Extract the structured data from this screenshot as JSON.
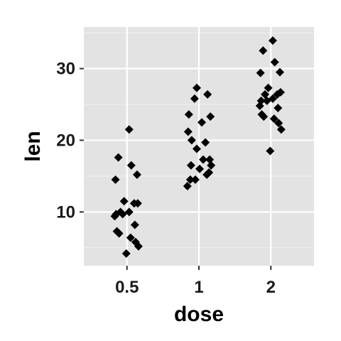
{
  "chart_data": {
    "type": "scatter",
    "title": "",
    "xlabel": "dose",
    "ylabel": "len",
    "categories": [
      "0.5",
      "1",
      "2"
    ],
    "ylim": [
      2.5,
      35.8
    ],
    "y_ticks": [
      10,
      20,
      30
    ],
    "grid": true,
    "legend": "none",
    "colors": {
      "panel": "#e3e3e3",
      "grid_major": "#ffffff",
      "grid_minor": "#f1f1f1",
      "point": "#000000"
    },
    "points": [
      {
        "x": "0.5",
        "y": 21.5
      },
      {
        "x": "0.5",
        "y": 17.6
      },
      {
        "x": "0.5",
        "y": 16.5
      },
      {
        "x": "0.5",
        "y": 15.2
      },
      {
        "x": "0.5",
        "y": 14.5
      },
      {
        "x": "0.5",
        "y": 11.5
      },
      {
        "x": "0.5",
        "y": 11.2
      },
      {
        "x": "0.5",
        "y": 11.2
      },
      {
        "x": "0.5",
        "y": 10.0
      },
      {
        "x": "0.5",
        "y": 10.0
      },
      {
        "x": "0.5",
        "y": 9.7
      },
      {
        "x": "0.5",
        "y": 9.7
      },
      {
        "x": "0.5",
        "y": 9.4
      },
      {
        "x": "0.5",
        "y": 8.2
      },
      {
        "x": "0.5",
        "y": 7.3
      },
      {
        "x": "0.5",
        "y": 7.0
      },
      {
        "x": "0.5",
        "y": 6.4
      },
      {
        "x": "0.5",
        "y": 5.8
      },
      {
        "x": "0.5",
        "y": 5.2
      },
      {
        "x": "0.5",
        "y": 4.2
      },
      {
        "x": "1",
        "y": 27.3
      },
      {
        "x": "1",
        "y": 26.4
      },
      {
        "x": "1",
        "y": 25.8
      },
      {
        "x": "1",
        "y": 23.6
      },
      {
        "x": "1",
        "y": 23.3
      },
      {
        "x": "1",
        "y": 22.5
      },
      {
        "x": "1",
        "y": 21.2
      },
      {
        "x": "1",
        "y": 20.0
      },
      {
        "x": "1",
        "y": 19.7
      },
      {
        "x": "1",
        "y": 18.8
      },
      {
        "x": "1",
        "y": 17.3
      },
      {
        "x": "1",
        "y": 17.3
      },
      {
        "x": "1",
        "y": 16.5
      },
      {
        "x": "1",
        "y": 16.5
      },
      {
        "x": "1",
        "y": 15.5
      },
      {
        "x": "1",
        "y": 15.2
      },
      {
        "x": "1",
        "y": 14.5
      },
      {
        "x": "1",
        "y": 14.5
      },
      {
        "x": "1",
        "y": 13.6
      },
      {
        "x": "1",
        "y": 16.0
      },
      {
        "x": "2",
        "y": 33.9
      },
      {
        "x": "2",
        "y": 32.5
      },
      {
        "x": "2",
        "y": 30.9
      },
      {
        "x": "2",
        "y": 29.5
      },
      {
        "x": "2",
        "y": 29.4
      },
      {
        "x": "2",
        "y": 27.3
      },
      {
        "x": "2",
        "y": 26.7
      },
      {
        "x": "2",
        "y": 26.4
      },
      {
        "x": "2",
        "y": 26.4
      },
      {
        "x": "2",
        "y": 25.8
      },
      {
        "x": "2",
        "y": 25.5
      },
      {
        "x": "2",
        "y": 25.5
      },
      {
        "x": "2",
        "y": 24.8
      },
      {
        "x": "2",
        "y": 24.5
      },
      {
        "x": "2",
        "y": 23.6
      },
      {
        "x": "2",
        "y": 23.3
      },
      {
        "x": "2",
        "y": 23.0
      },
      {
        "x": "2",
        "y": 22.4
      },
      {
        "x": "2",
        "y": 21.5
      },
      {
        "x": "2",
        "y": 18.5
      }
    ]
  }
}
